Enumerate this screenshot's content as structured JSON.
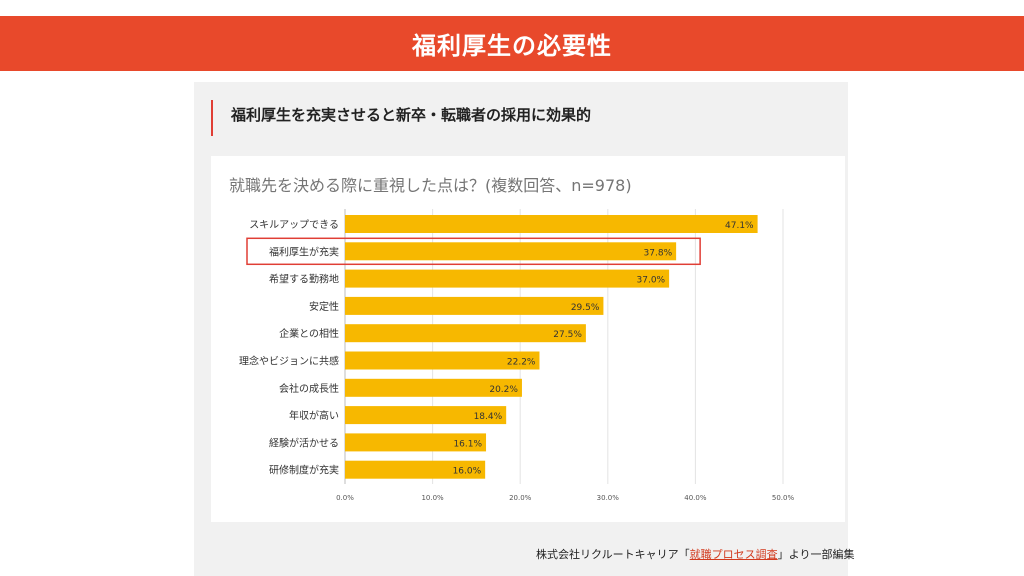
{
  "header": {
    "title": "福利厚生の必要性"
  },
  "section": {
    "subtitle": "福利厚生を充実させると新卒・転職者の採用に効果的"
  },
  "colors": {
    "banner": "#e8492b",
    "bar": "#f7b800",
    "highlight": "#e03e35",
    "link": "#d23a1e"
  },
  "chart_data": {
    "type": "bar",
    "orientation": "horizontal",
    "title": "就職先を決める際に重視した点は？(複数回答、n=978)",
    "categories": [
      "スキルアップできる",
      "福利厚生が充実",
      "希望する勤務地",
      "安定性",
      "企業との相性",
      "理念やビジョンに共感",
      "会社の成長性",
      "年収が高い",
      "経験が活かせる",
      "研修制度が充実"
    ],
    "values": [
      47.1,
      37.8,
      37.0,
      29.5,
      27.5,
      22.2,
      20.2,
      18.4,
      16.1,
      16.0
    ],
    "value_labels": [
      "47.1%",
      "37.8%",
      "37.0%",
      "29.5%",
      "27.5%",
      "22.2%",
      "20.2%",
      "18.4%",
      "16.1%",
      "16.0%"
    ],
    "xlim": [
      0,
      50
    ],
    "x_ticks": [
      "0.0%",
      "10.0%",
      "20.0%",
      "30.0%",
      "40.0%",
      "50.0%"
    ],
    "highlighted_category": "福利厚生が充実",
    "grid": true
  },
  "footnote": {
    "prefix": "株式会社リクルートキャリア「",
    "link": "就職プロセス調査",
    "suffix": "」より一部編集"
  }
}
